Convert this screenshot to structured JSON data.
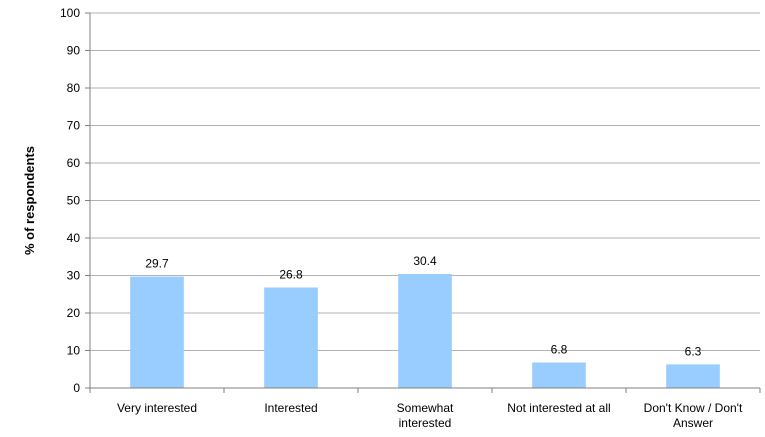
{
  "chart_data": {
    "type": "bar",
    "title": "",
    "xlabel": "",
    "ylabel": "% of respondents",
    "ylim": [
      0,
      100
    ],
    "yticks": [
      0,
      10,
      20,
      30,
      40,
      50,
      60,
      70,
      80,
      90,
      100
    ],
    "grid": "horizontal",
    "categories": [
      "Very interested",
      "Interested",
      "Somewhat interested",
      "Not interested at all",
      "Don't Know / Don't Answer"
    ],
    "category_lines": [
      [
        "Very interested"
      ],
      [
        "Interested"
      ],
      [
        "Somewhat",
        "interested"
      ],
      [
        "Not interested at all"
      ],
      [
        "Don't Know / Don't",
        "Answer"
      ]
    ],
    "values": [
      29.7,
      26.8,
      30.4,
      6.8,
      6.3
    ],
    "data_labels": [
      "29.7",
      "26.8",
      "30.4",
      "6.8",
      "6.3"
    ],
    "colors": {
      "bar": "#99ccff",
      "grid": "#b3b3b3",
      "axis": "#808080"
    }
  }
}
